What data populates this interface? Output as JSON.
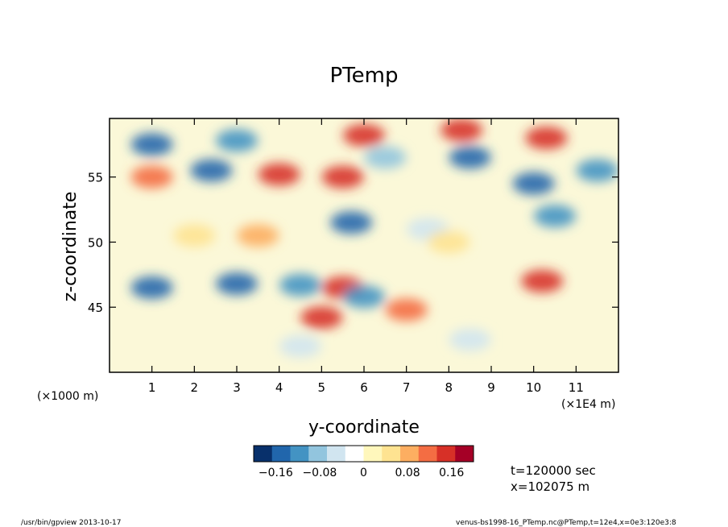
{
  "chart_data": {
    "type": "heatmap",
    "title": "PTemp",
    "xlabel": "y-coordinate",
    "ylabel": "z-coordinate",
    "x_unit_left": "(×1000 m)",
    "x_unit_right": "(×1E4 m)",
    "xlim": [
      0,
      12
    ],
    "ylim": [
      40,
      59.5
    ],
    "x_ticks": [
      "1",
      "2",
      "3",
      "4",
      "5",
      "6",
      "7",
      "8",
      "9",
      "10",
      "11"
    ],
    "y_ticks": [
      "45",
      "50",
      "55"
    ],
    "colorbar": {
      "range": [
        -0.2,
        0.2
      ],
      "tick_labels": [
        "−0.16",
        "−0.08",
        "0",
        "0.08",
        "0.16"
      ],
      "tick_values": [
        -0.16,
        -0.08,
        0,
        0.08,
        0.16
      ],
      "colors": [
        "#08306b",
        "#2166ac",
        "#4393c3",
        "#92c5de",
        "#d1e5f0",
        "#ffffff",
        "#fff7bc",
        "#fee391",
        "#fdae61",
        "#f46d43",
        "#d73027",
        "#a50026"
      ]
    },
    "grid": false,
    "features": [
      {
        "y": 5.5,
        "z": 55.0,
        "value": 0.14
      },
      {
        "y": 4.0,
        "z": 55.2,
        "value": 0.15
      },
      {
        "y": 1.0,
        "z": 55.0,
        "value": 0.12
      },
      {
        "y": 6.0,
        "z": 58.2,
        "value": 0.16
      },
      {
        "y": 8.3,
        "z": 58.6,
        "value": 0.15
      },
      {
        "y": 10.3,
        "z": 58.0,
        "value": 0.14
      },
      {
        "y": 5.5,
        "z": 46.5,
        "value": 0.16
      },
      {
        "y": 10.2,
        "z": 47.0,
        "value": 0.15
      },
      {
        "y": 5.0,
        "z": 44.2,
        "value": 0.14
      },
      {
        "y": 7.0,
        "z": 44.8,
        "value": 0.1
      },
      {
        "y": 3.0,
        "z": 46.8,
        "value": -0.14
      },
      {
        "y": 1.0,
        "z": 46.5,
        "value": -0.15
      },
      {
        "y": 4.5,
        "z": 46.7,
        "value": -0.12
      },
      {
        "y": 5.7,
        "z": 51.5,
        "value": -0.16
      },
      {
        "y": 2.4,
        "z": 55.5,
        "value": -0.15
      },
      {
        "y": 10.0,
        "z": 54.5,
        "value": -0.16
      },
      {
        "y": 10.5,
        "z": 52.0,
        "value": -0.13
      },
      {
        "y": 8.5,
        "z": 56.5,
        "value": -0.14
      },
      {
        "y": 1.0,
        "z": 57.5,
        "value": -0.15
      },
      {
        "y": 3.0,
        "z": 57.8,
        "value": -0.12
      },
      {
        "y": 6.5,
        "z": 56.5,
        "value": -0.1
      },
      {
        "y": 11.5,
        "z": 55.5,
        "value": -0.12
      },
      {
        "y": 7.5,
        "z": 51.0,
        "value": -0.06
      },
      {
        "y": 2.0,
        "z": 50.5,
        "value": 0.06
      },
      {
        "y": 3.5,
        "z": 50.5,
        "value": 0.07
      },
      {
        "y": 8.0,
        "z": 50.0,
        "value": 0.06
      },
      {
        "y": 4.5,
        "z": 42.0,
        "value": -0.05
      },
      {
        "y": 8.5,
        "z": 42.5,
        "value": -0.05
      },
      {
        "y": 6.0,
        "z": 45.8,
        "value": -0.13
      }
    ]
  },
  "info": {
    "time": "t=120000 sec",
    "position": "x=102075 m"
  },
  "footer": {
    "program": "/usr/bin/gpview   2013-10-17",
    "source": "venus-bs1998-16_PTemp.nc@PTemp,t=12e4,x=0e3:120e3:8"
  }
}
